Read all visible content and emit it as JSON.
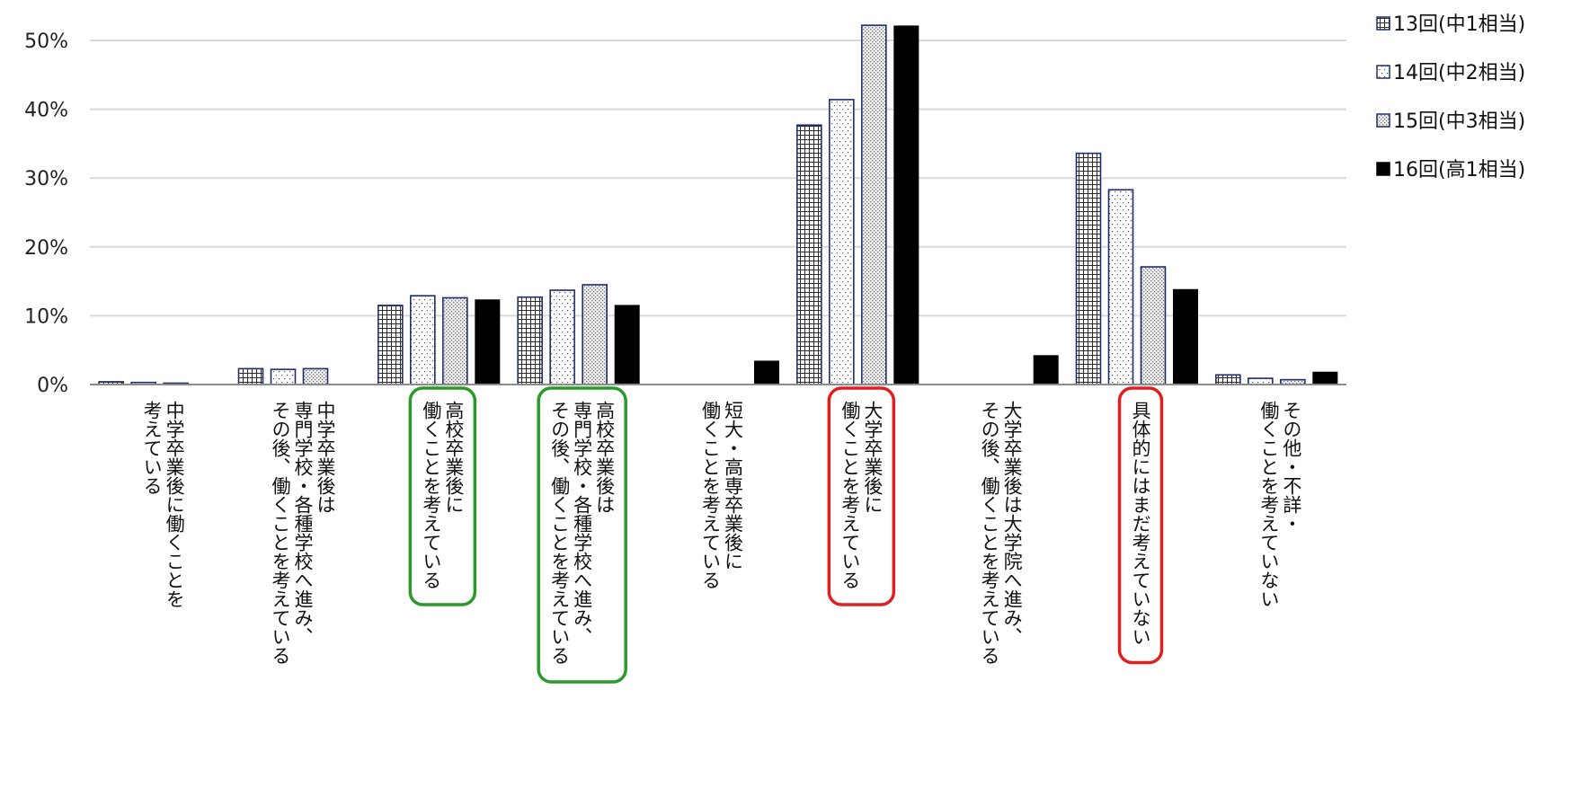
{
  "chart_data": {
    "type": "bar",
    "title": "",
    "xlabel": "",
    "ylabel": "",
    "ylim": [
      0,
      50
    ],
    "yticks": [
      "0%",
      "10%",
      "20%",
      "30%",
      "40%",
      "50%"
    ],
    "grid": true,
    "legend_position": "top-right",
    "categories": [
      {
        "lines": [
          "中学卒業後に働くことを",
          "考えている"
        ]
      },
      {
        "lines": [
          "中学卒業後は",
          "専門学校・各種学校へ進み、",
          "その後、働くことを考えている"
        ]
      },
      {
        "lines": [
          "高校卒業後に",
          "働くことを考えている"
        ]
      },
      {
        "lines": [
          "高校卒業後は",
          "専門学校・各種学校へ進み、",
          "その後、働くことを考えている"
        ]
      },
      {
        "lines": [
          "短大・高専卒業後に",
          "働くことを考えている"
        ]
      },
      {
        "lines": [
          "大学卒業後に",
          "働くことを考えている"
        ]
      },
      {
        "lines": [
          "大学卒業後は大学院へ進み、",
          "その後、働くことを考えている"
        ]
      },
      {
        "lines": [
          "具体的にはまだ考えていない"
        ]
      },
      {
        "lines": [
          "その他・不詳・",
          "働くことを考えていない"
        ]
      }
    ],
    "series": [
      {
        "name": "13回(中1相当)",
        "pattern": "grid",
        "values": [
          0.4,
          2.3,
          11.5,
          12.7,
          0.0,
          37.7,
          0.0,
          33.6,
          1.4
        ]
      },
      {
        "name": "14回(中2相当)",
        "pattern": "dots-sparse",
        "values": [
          0.3,
          2.2,
          12.9,
          13.7,
          0.0,
          41.4,
          0.0,
          28.3,
          0.9
        ]
      },
      {
        "name": "15回(中3相当)",
        "pattern": "dots-dense",
        "values": [
          0.2,
          2.3,
          12.6,
          14.5,
          0.0,
          52.2,
          0.0,
          17.1,
          0.7
        ]
      },
      {
        "name": "16回(高1相当)",
        "pattern": "solid",
        "values": [
          0.0,
          0.0,
          12.3,
          11.5,
          3.4,
          52.1,
          4.2,
          13.8,
          1.8
        ]
      }
    ],
    "highlights": [
      {
        "category_index": 2,
        "color": "#2a9a2a"
      },
      {
        "category_index": 3,
        "color": "#2a9a2a"
      },
      {
        "category_index": 5,
        "color": "#e02020"
      },
      {
        "category_index": 7,
        "color": "#e02020"
      }
    ],
    "colors": {
      "outline": "#1f2d6b",
      "solid": "#000000",
      "grid": "#d9d9d9",
      "axis": "#8c8c8c",
      "green": "#2a9a2a",
      "red": "#e02020"
    }
  }
}
